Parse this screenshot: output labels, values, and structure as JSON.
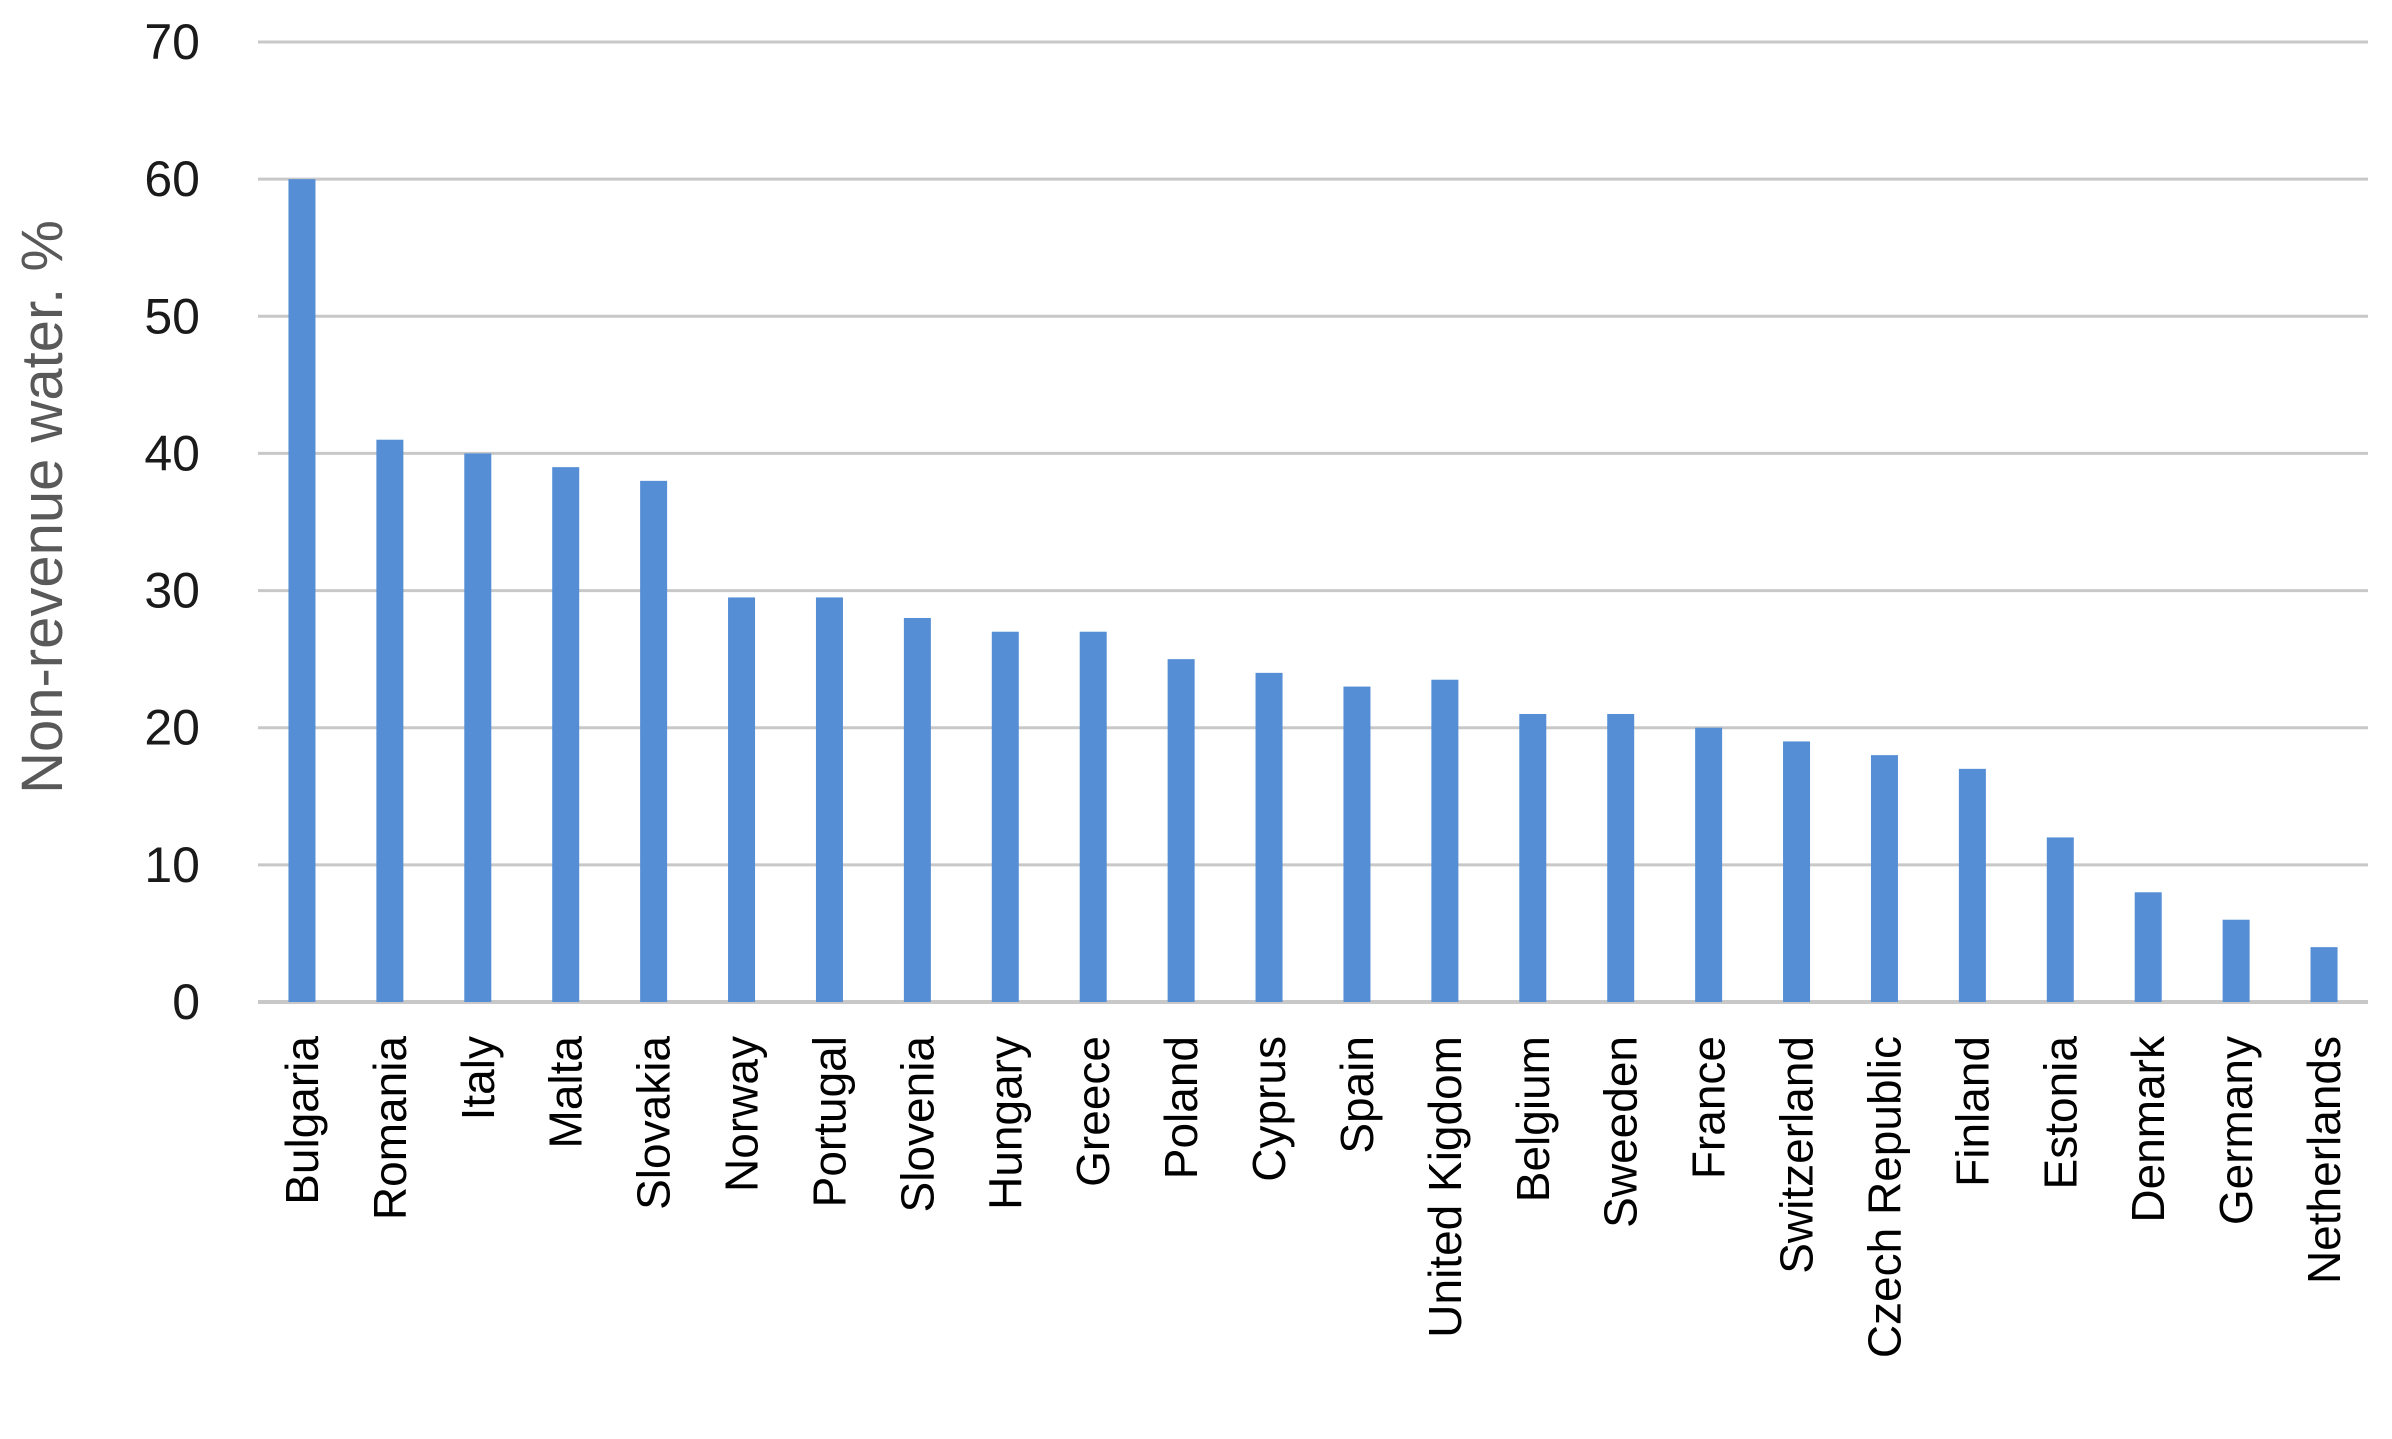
{
  "chart_data": {
    "type": "bar",
    "title": "",
    "xlabel": "",
    "ylabel": "Non-revenue water. %",
    "ylim": [
      0,
      70
    ],
    "yticks": [
      0,
      10,
      20,
      30,
      40,
      50,
      60,
      70
    ],
    "grid": true,
    "legend": "none",
    "bar_color": "#558ed5",
    "grid_color": "#c8c8c8",
    "categories": [
      "Bulgaria",
      "Romania",
      "Italy",
      "Malta",
      "Slovakia",
      "Norway",
      "Portugal",
      "Slovenia",
      "Hungary",
      "Greece",
      "Poland",
      "Cyprus",
      "Spain",
      "United Kigdom",
      "Belgium",
      "Sweeden",
      "France",
      "Switzerland",
      "Czech Republic",
      "Finland",
      "Estonia",
      "Denmark",
      "Germany",
      "Netherlands"
    ],
    "values": [
      60,
      41,
      40,
      39,
      38,
      29.5,
      29.5,
      28,
      27,
      27,
      25,
      24,
      23,
      23.5,
      21,
      21,
      20,
      19,
      18,
      17,
      12,
      8,
      6,
      4
    ]
  }
}
